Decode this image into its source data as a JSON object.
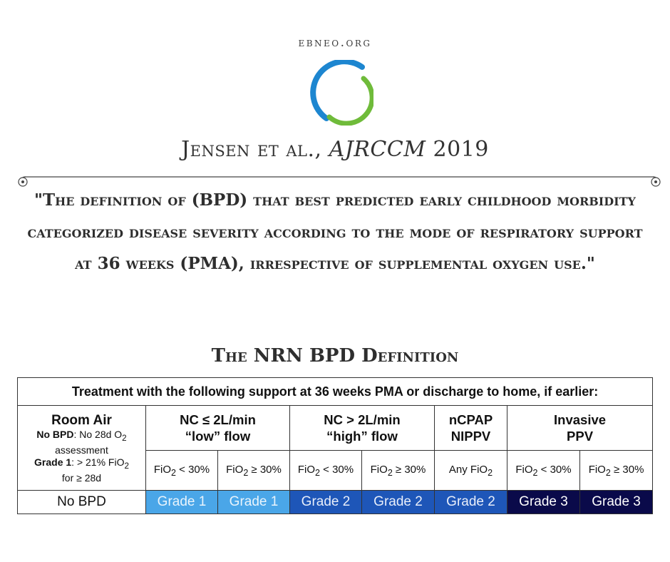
{
  "site": "EBNEO.ORG",
  "colors": {
    "logo_blue": "#1d86d0",
    "logo_green": "#6fbb3a",
    "grade1": "#4aa6e8",
    "grade2": "#1e56b8",
    "grade3": "#0a0a4a"
  },
  "citation": {
    "authors": "Jensen et al.,",
    "journal": "AJRCCM",
    "year": "2019"
  },
  "quote": "\"The definition of (BPD) that best predicted early childhood morbidity categorized disease severity according to the mode of respiratory support at 36 weeks (PMA), irrespective of supplemental oxygen use.\"",
  "table": {
    "title": "The NRN BPD Definition",
    "header": "Treatment with the following support at 36 weeks PMA or discharge to home, if earlier:",
    "room_air": {
      "title": "Room Air",
      "no_bpd_label": "No BPD",
      "no_bpd_text": ": No 28d O",
      "no_bpd_sub": "2",
      "no_bpd_tail": "assessment",
      "grade1_label": "Grade 1",
      "grade1_text": ": > 21% FiO",
      "grade1_sub": "2",
      "grade1_tail": "for ≥ 28d"
    },
    "columns": [
      {
        "line1": "NC ≤ 2L/min",
        "line2": "“low” flow"
      },
      {
        "line1": "NC > 2L/min",
        "line2": "“high” flow"
      },
      {
        "line1": "nCPAP",
        "line2": "NIPPV"
      },
      {
        "line1": "Invasive",
        "line2": "PPV"
      }
    ],
    "fio": [
      {
        "pre": "FiO",
        "sub": "2",
        "post": " < 30%"
      },
      {
        "pre": "FiO",
        "sub": "2",
        "post": " ≥ 30%"
      },
      {
        "pre": "FiO",
        "sub": "2",
        "post": " < 30%"
      },
      {
        "pre": "FiO",
        "sub": "2",
        "post": " ≥ 30%"
      },
      {
        "pre": "Any FiO",
        "sub": "2",
        "post": ""
      },
      {
        "pre": "FiO",
        "sub": "2",
        "post": " < 30%"
      },
      {
        "pre": "FiO",
        "sub": "2",
        "post": " ≥ 30%"
      }
    ],
    "grades": [
      "No BPD",
      "Grade 1",
      "Grade 1",
      "Grade 2",
      "Grade 2",
      "Grade 2",
      "Grade 3",
      "Grade 3"
    ]
  }
}
